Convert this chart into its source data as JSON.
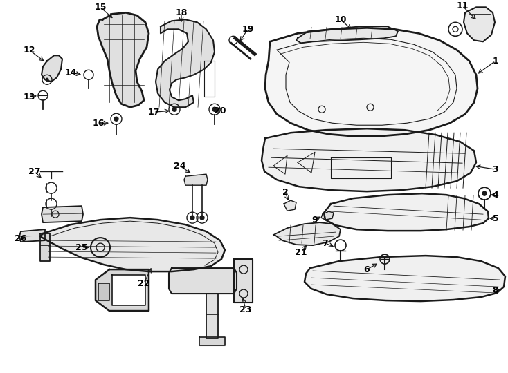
{
  "bg_color": "#ffffff",
  "lc": "#1a1a1a",
  "fig_width": 7.34,
  "fig_height": 5.4,
  "dpi": 100
}
